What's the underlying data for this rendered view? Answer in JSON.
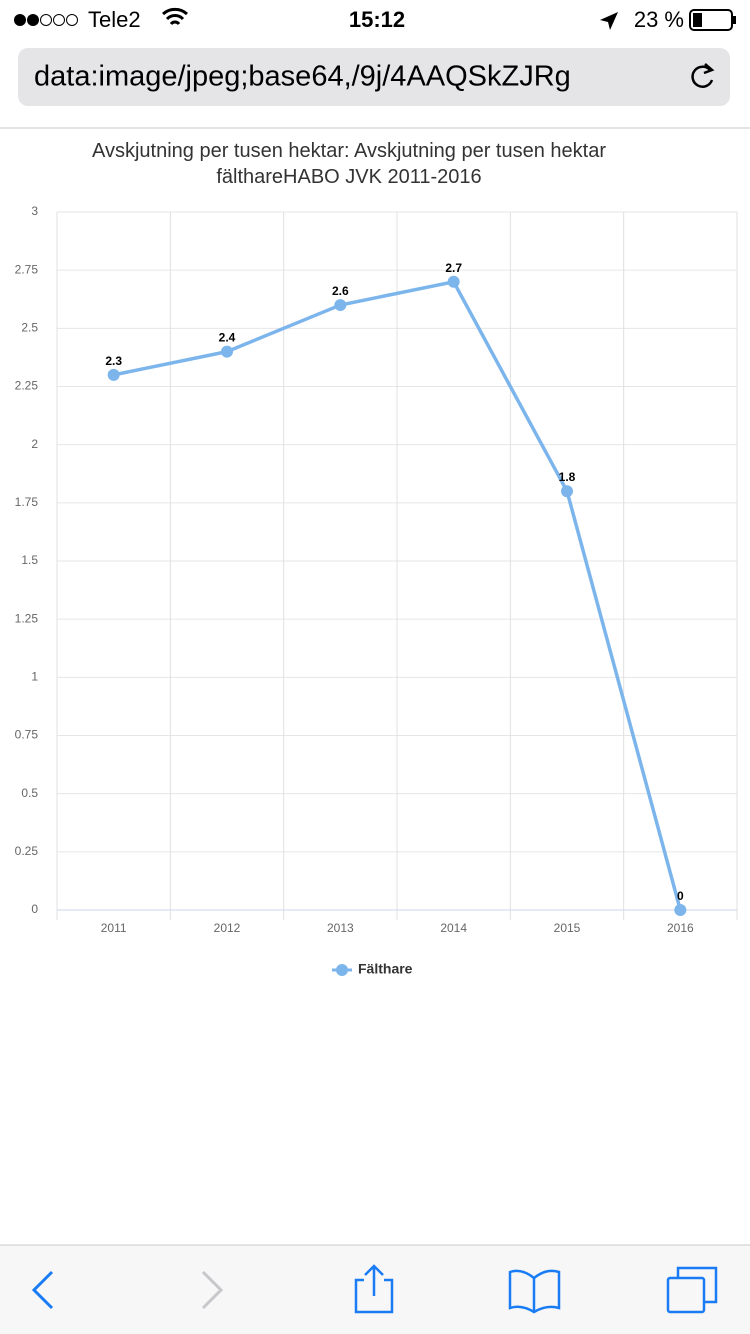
{
  "status_bar": {
    "carrier": "Tele2",
    "time": "15:12",
    "battery": "23 %"
  },
  "address_bar": {
    "url": "data:image/jpeg;base64,/9j/4AAQSkZJRg"
  },
  "chart_data": {
    "type": "line",
    "title": "Avskjutning per tusen hektar: Avskjutning per tusen hektar fälthareHABO JVK 2011-2016",
    "categories": [
      "2011",
      "2012",
      "2013",
      "2014",
      "2015",
      "2016"
    ],
    "series": [
      {
        "name": "Fälthare",
        "color": "#7cb5ec",
        "values": [
          2.3,
          2.4,
          2.6,
          2.7,
          1.8,
          0
        ]
      }
    ],
    "ylim": [
      0,
      3
    ],
    "yticks": [
      0,
      0.25,
      0.5,
      0.75,
      1,
      1.25,
      1.5,
      1.75,
      2,
      2.25,
      2.5,
      2.75,
      3
    ],
    "grid": true,
    "data_labels": true,
    "legend": "bottom"
  }
}
